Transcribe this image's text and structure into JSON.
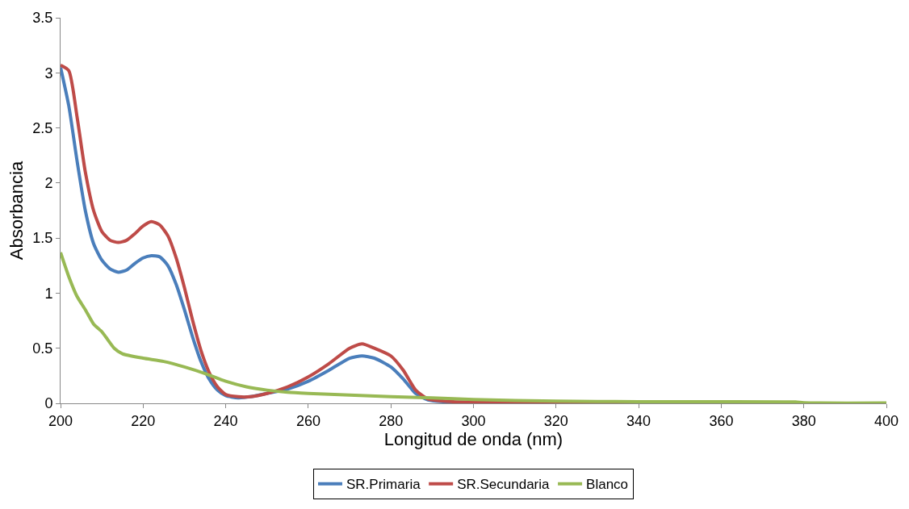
{
  "chart_data": {
    "type": "line",
    "xlabel": "Longitud de onda (nm)",
    "ylabel": "Absorbancia",
    "xlim": [
      200,
      400
    ],
    "xticks": [
      200,
      220,
      240,
      260,
      280,
      300,
      320,
      340,
      360,
      380,
      400
    ],
    "ylim": [
      0,
      3.5
    ],
    "yticks": [
      0,
      0.5,
      1,
      1.5,
      2,
      2.5,
      3,
      3.5
    ],
    "legend": "bottom",
    "line_style": "solid",
    "marker": "none",
    "series": [
      {
        "name": "SR.Primaria",
        "color": "#4a7ebb",
        "x": [
          200,
          202,
          204,
          206,
          208,
          210,
          212,
          214,
          216,
          218,
          220,
          222,
          224,
          226,
          228,
          230,
          232,
          234,
          236,
          238,
          240,
          243,
          246,
          250,
          255,
          260,
          265,
          270,
          273,
          276,
          280,
          283,
          286,
          289,
          295,
          300
        ],
        "values": [
          3.05,
          2.7,
          2.2,
          1.75,
          1.45,
          1.3,
          1.22,
          1.19,
          1.21,
          1.27,
          1.32,
          1.34,
          1.33,
          1.25,
          1.08,
          0.85,
          0.6,
          0.38,
          0.22,
          0.12,
          0.07,
          0.05,
          0.06,
          0.09,
          0.13,
          0.2,
          0.3,
          0.41,
          0.43,
          0.41,
          0.33,
          0.22,
          0.09,
          0.03,
          0.01,
          0.01
        ]
      },
      {
        "name": "SR.Secundaria",
        "color": "#be4b48",
        "x": [
          200,
          202,
          204,
          206,
          208,
          210,
          212,
          214,
          216,
          218,
          220,
          222,
          224,
          226,
          228,
          230,
          232,
          234,
          236,
          238,
          240,
          243,
          246,
          250,
          255,
          260,
          265,
          270,
          273,
          276,
          280,
          283,
          286,
          289,
          295,
          300,
          320,
          360,
          400
        ],
        "values": [
          3.07,
          3.02,
          2.6,
          2.1,
          1.75,
          1.56,
          1.48,
          1.46,
          1.48,
          1.54,
          1.61,
          1.65,
          1.62,
          1.52,
          1.32,
          1.05,
          0.75,
          0.48,
          0.28,
          0.15,
          0.08,
          0.06,
          0.06,
          0.09,
          0.15,
          0.24,
          0.36,
          0.5,
          0.54,
          0.5,
          0.43,
          0.3,
          0.12,
          0.04,
          0.015,
          0.01,
          0.005,
          0,
          0
        ]
      },
      {
        "name": "Blanco",
        "color": "#98b954",
        "x": [
          200,
          202,
          204,
          206,
          208,
          210,
          211,
          213,
          215,
          220,
          225,
          230,
          235,
          240,
          245,
          250,
          255,
          260,
          270,
          280,
          290,
          300,
          320,
          340,
          360,
          378,
          380,
          400
        ],
        "values": [
          1.37,
          1.15,
          0.97,
          0.85,
          0.72,
          0.65,
          0.6,
          0.5,
          0.45,
          0.41,
          0.38,
          0.33,
          0.27,
          0.2,
          0.15,
          0.12,
          0.1,
          0.09,
          0.075,
          0.06,
          0.05,
          0.035,
          0.02,
          0.015,
          0.015,
          0.012,
          0.005,
          0.003
        ]
      }
    ]
  }
}
